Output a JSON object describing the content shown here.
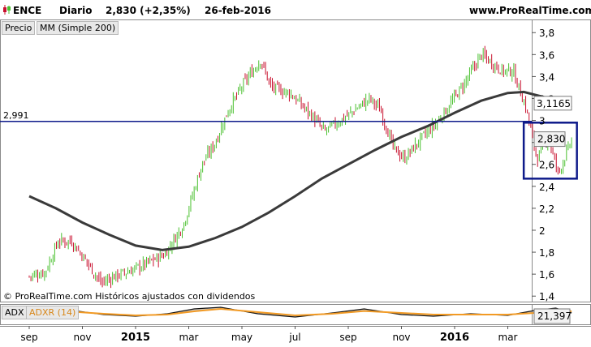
{
  "header": {
    "symbol": "ENCE",
    "period": "Diario",
    "last_value": "2,830 (+2,35%)",
    "date": "26-feb-2016",
    "site": "www.ProRealTime.com"
  },
  "legend": {
    "price": "Precio",
    "ma": "MM (Simple 200)"
  },
  "copyright": "© ProRealTime.com  Históricos ajustados con dividendos",
  "colors": {
    "up": "#4ac02f",
    "down": "#c8102e",
    "ma": "#3a3a3a",
    "hline": "#0e1a8a",
    "box": "#0e1a8a",
    "adx": "#111111",
    "adxr": "#f29a24"
  },
  "chart_data": [
    {
      "type": "candlestick",
      "title": "ENCE Diario",
      "y_ticks": [
        "1,4",
        "1,6",
        "1,8",
        "2",
        "2,2",
        "2,4",
        "2,6",
        "2,8",
        "3",
        "3,2",
        "3,4",
        "3,6",
        "3,8"
      ],
      "ylim": [
        1.35,
        3.92
      ],
      "x_ticks": [
        "sep",
        "nov",
        "2015",
        "mar",
        "may",
        "jul",
        "sep",
        "nov",
        "2016",
        "mar"
      ],
      "horizontal_line": {
        "label": "2,991",
        "value": 2.991
      },
      "price_label": "2,830",
      "ma_label": "3,1165",
      "price_path": [
        {
          "t": 0,
          "v": 1.58
        },
        {
          "t": 0.3,
          "v": 1.62
        },
        {
          "t": 0.55,
          "v": 1.9
        },
        {
          "t": 0.8,
          "v": 1.9
        },
        {
          "t": 1.1,
          "v": 1.7
        },
        {
          "t": 1.35,
          "v": 1.52
        },
        {
          "t": 1.6,
          "v": 1.58
        },
        {
          "t": 1.9,
          "v": 1.63
        },
        {
          "t": 2.3,
          "v": 1.72
        },
        {
          "t": 2.55,
          "v": 1.78
        },
        {
          "t": 2.9,
          "v": 2.05
        },
        {
          "t": 3.25,
          "v": 2.6
        },
        {
          "t": 3.5,
          "v": 2.8
        },
        {
          "t": 3.75,
          "v": 3.1
        },
        {
          "t": 4.05,
          "v": 3.35
        },
        {
          "t": 4.35,
          "v": 3.55
        },
        {
          "t": 4.55,
          "v": 3.3
        },
        {
          "t": 4.9,
          "v": 3.25
        },
        {
          "t": 5.3,
          "v": 3.05
        },
        {
          "t": 5.55,
          "v": 2.9
        },
        {
          "t": 6.0,
          "v": 3.05
        },
        {
          "t": 6.4,
          "v": 3.2
        },
        {
          "t": 6.6,
          "v": 3.1
        },
        {
          "t": 6.85,
          "v": 2.75
        },
        {
          "t": 7.05,
          "v": 2.65
        },
        {
          "t": 7.4,
          "v": 2.85
        },
        {
          "t": 7.7,
          "v": 3.0
        },
        {
          "t": 8.2,
          "v": 3.35
        },
        {
          "t": 8.5,
          "v": 3.6
        },
        {
          "t": 8.9,
          "v": 3.45
        },
        {
          "t": 9.1,
          "v": 3.45
        },
        {
          "t": 9.35,
          "v": 3.1
        },
        {
          "t": 9.55,
          "v": 2.65
        },
        {
          "t": 9.75,
          "v": 2.85
        },
        {
          "t": 9.95,
          "v": 2.52
        },
        {
          "t": 10.2,
          "v": 2.82
        }
      ],
      "ma_path": [
        {
          "t": 0,
          "v": 2.31
        },
        {
          "t": 0.5,
          "v": 2.2
        },
        {
          "t": 1.0,
          "v": 2.07
        },
        {
          "t": 1.5,
          "v": 1.96
        },
        {
          "t": 2.0,
          "v": 1.86
        },
        {
          "t": 2.5,
          "v": 1.82
        },
        {
          "t": 3.0,
          "v": 1.85
        },
        {
          "t": 3.5,
          "v": 1.93
        },
        {
          "t": 4.0,
          "v": 2.03
        },
        {
          "t": 4.5,
          "v": 2.16
        },
        {
          "t": 5.0,
          "v": 2.31
        },
        {
          "t": 5.5,
          "v": 2.47
        },
        {
          "t": 6.0,
          "v": 2.6
        },
        {
          "t": 6.5,
          "v": 2.73
        },
        {
          "t": 7.0,
          "v": 2.85
        },
        {
          "t": 7.5,
          "v": 2.95
        },
        {
          "t": 8.0,
          "v": 3.07
        },
        {
          "t": 8.5,
          "v": 3.18
        },
        {
          "t": 9.0,
          "v": 3.25
        },
        {
          "t": 9.3,
          "v": 3.26
        },
        {
          "t": 9.7,
          "v": 3.21
        },
        {
          "t": 10.0,
          "v": 3.16
        },
        {
          "t": 10.2,
          "v": 3.1165
        }
      ],
      "highlight_box": {
        "t_start": 9.3,
        "t_end": 10.3,
        "v_low": 2.47,
        "v_high": 2.98
      }
    },
    {
      "type": "line",
      "series": [
        {
          "name": "ADX"
        },
        {
          "name": "ADXR (14)"
        }
      ],
      "value_label": "21,397",
      "x_ticks": [
        "sep",
        "nov",
        "2015",
        "mar",
        "may",
        "jul",
        "sep",
        "nov",
        "2016",
        "mar"
      ],
      "adx": [
        {
          "t": 0,
          "v": 0.45
        },
        {
          "t": 0.7,
          "v": 0.8
        },
        {
          "t": 1.4,
          "v": 0.5
        },
        {
          "t": 2.0,
          "v": 0.4
        },
        {
          "t": 2.6,
          "v": 0.55
        },
        {
          "t": 3.1,
          "v": 0.85
        },
        {
          "t": 3.6,
          "v": 0.95
        },
        {
          "t": 4.3,
          "v": 0.55
        },
        {
          "t": 5.0,
          "v": 0.35
        },
        {
          "t": 5.7,
          "v": 0.6
        },
        {
          "t": 6.3,
          "v": 0.85
        },
        {
          "t": 7.0,
          "v": 0.5
        },
        {
          "t": 7.6,
          "v": 0.4
        },
        {
          "t": 8.3,
          "v": 0.55
        },
        {
          "t": 9.0,
          "v": 0.45
        },
        {
          "t": 9.5,
          "v": 0.75
        },
        {
          "t": 9.9,
          "v": 0.9
        },
        {
          "t": 10.2,
          "v": 0.6
        }
      ],
      "adxr": [
        {
          "t": 0,
          "v": 0.5
        },
        {
          "t": 0.7,
          "v": 0.7
        },
        {
          "t": 1.4,
          "v": 0.55
        },
        {
          "t": 2.0,
          "v": 0.45
        },
        {
          "t": 2.6,
          "v": 0.5
        },
        {
          "t": 3.1,
          "v": 0.7
        },
        {
          "t": 3.6,
          "v": 0.85
        },
        {
          "t": 4.3,
          "v": 0.65
        },
        {
          "t": 5.0,
          "v": 0.45
        },
        {
          "t": 5.7,
          "v": 0.55
        },
        {
          "t": 6.3,
          "v": 0.72
        },
        {
          "t": 7.0,
          "v": 0.6
        },
        {
          "t": 7.6,
          "v": 0.5
        },
        {
          "t": 8.3,
          "v": 0.5
        },
        {
          "t": 9.0,
          "v": 0.5
        },
        {
          "t": 9.5,
          "v": 0.6
        },
        {
          "t": 9.9,
          "v": 0.8
        },
        {
          "t": 10.2,
          "v": 0.7
        }
      ]
    }
  ]
}
